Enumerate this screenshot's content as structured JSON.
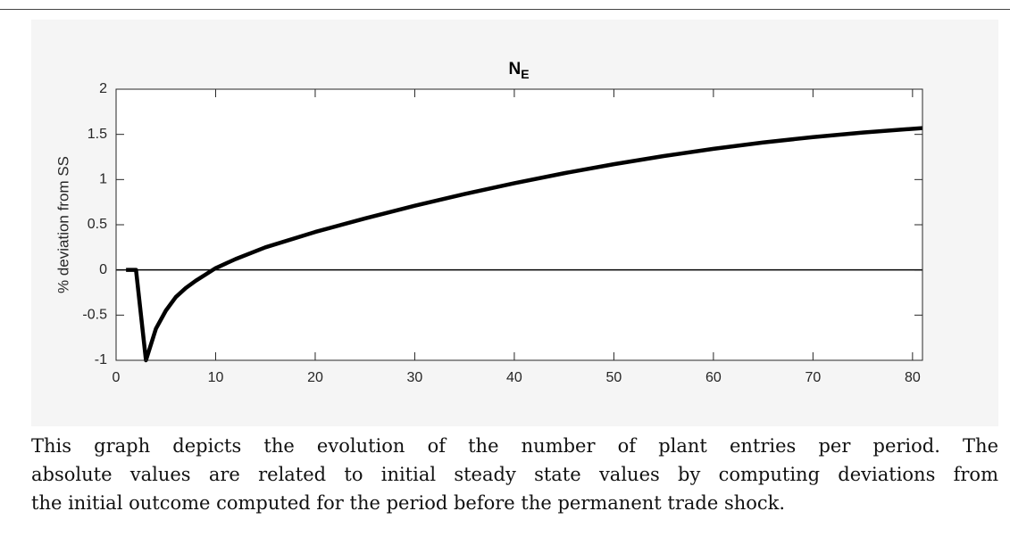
{
  "chart_data": {
    "type": "line",
    "title": "N",
    "title_subscript": "E",
    "ylabel": "% deviation from SS",
    "x": [
      1,
      2,
      3,
      4,
      5,
      6,
      7,
      8,
      9,
      10,
      12,
      15,
      20,
      25,
      30,
      35,
      40,
      45,
      50,
      55,
      60,
      65,
      70,
      75,
      81
    ],
    "series": [
      {
        "name": "N_E",
        "color": "#000000",
        "values": [
          0,
          0,
          -1,
          -0.65,
          -0.45,
          -0.3,
          -0.2,
          -0.12,
          -0.05,
          0.02,
          0.12,
          0.25,
          0.42,
          0.57,
          0.71,
          0.84,
          0.96,
          1.07,
          1.17,
          1.26,
          1.34,
          1.41,
          1.47,
          1.52,
          1.57
        ]
      }
    ],
    "hline": 0,
    "xlim": [
      0,
      81
    ],
    "xticks": [
      0,
      10,
      20,
      30,
      40,
      50,
      60,
      70,
      80
    ],
    "ylim": [
      -1,
      2
    ],
    "yticks": [
      -1,
      -0.5,
      0,
      0.5,
      1,
      1.5,
      2
    ]
  },
  "caption": {
    "lines": [
      "This graph depicts the evolution of the number of plant entries per period. The",
      "absolute values are related to initial steady state values by computing deviations from",
      "the initial outcome computed for the period before the permanent trade shock."
    ]
  }
}
